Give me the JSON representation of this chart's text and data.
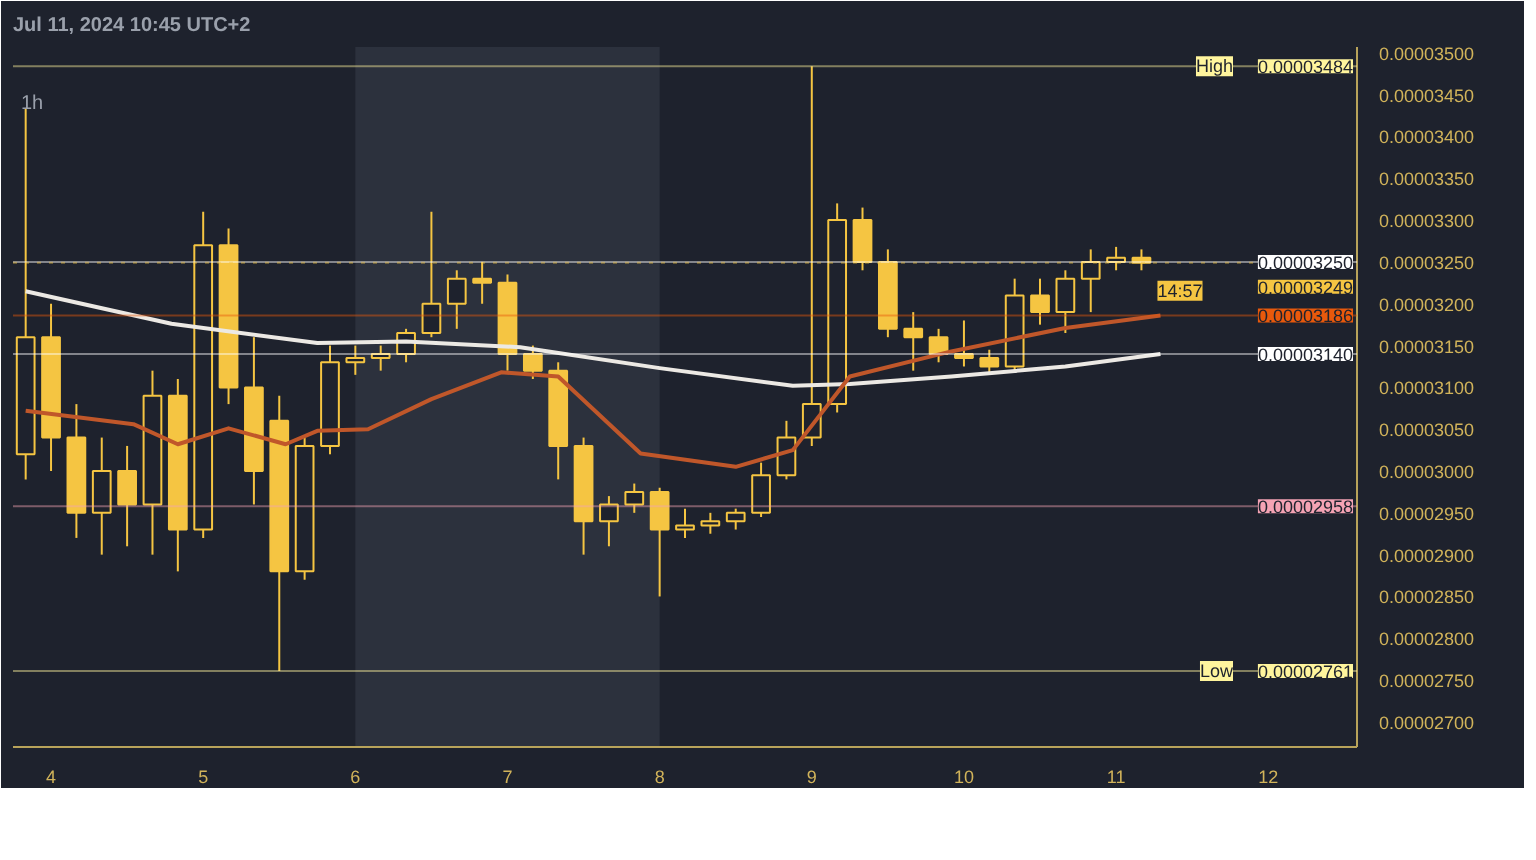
{
  "chart_data": {
    "type": "candlestick",
    "title": "Jul 11, 2024 10:45 UTC+2",
    "subtitle": "1h",
    "x": [
      "2024-07-03T20:00",
      "2024-07-04T00:00",
      "2024-07-04T04:00",
      "2024-07-04T08:00",
      "2024-07-04T12:00",
      "2024-07-04T16:00",
      "2024-07-04T20:00",
      "2024-07-05T00:00",
      "2024-07-05T04:00",
      "2024-07-05T08:00",
      "2024-07-05T12:00",
      "2024-07-05T16:00",
      "2024-07-05T20:00",
      "2024-07-06T00:00",
      "2024-07-06T04:00",
      "2024-07-06T08:00",
      "2024-07-06T12:00",
      "2024-07-06T16:00",
      "2024-07-06T20:00",
      "2024-07-07T00:00",
      "2024-07-07T04:00",
      "2024-07-07T08:00",
      "2024-07-07T12:00",
      "2024-07-07T16:00",
      "2024-07-07T20:00",
      "2024-07-08T00:00",
      "2024-07-08T04:00",
      "2024-07-08T08:00",
      "2024-07-08T12:00",
      "2024-07-08T16:00",
      "2024-07-08T20:00",
      "2024-07-09T00:00",
      "2024-07-09T04:00",
      "2024-07-09T08:00",
      "2024-07-09T12:00",
      "2024-07-09T16:00",
      "2024-07-09T20:00",
      "2024-07-10T00:00",
      "2024-07-10T04:00",
      "2024-07-10T08:00",
      "2024-07-10T12:00",
      "2024-07-10T16:00",
      "2024-07-10T20:00",
      "2024-07-11T00:00",
      "2024-07-11T04:00"
    ],
    "ohlc": [
      [
        3.02e-05,
        3.433e-05,
        2.99e-05,
        3.16e-05
      ],
      [
        3.16e-05,
        3.2e-05,
        3e-05,
        3.04e-05
      ],
      [
        3.04e-05,
        3.08e-05,
        2.92e-05,
        2.95e-05
      ],
      [
        2.95e-05,
        3.04e-05,
        2.9e-05,
        3e-05
      ],
      [
        3e-05,
        3.03e-05,
        2.91e-05,
        2.96e-05
      ],
      [
        2.96e-05,
        3.12e-05,
        2.9e-05,
        3.09e-05
      ],
      [
        3.09e-05,
        3.11e-05,
        2.88e-05,
        2.93e-05
      ],
      [
        2.93e-05,
        3.31e-05,
        2.92e-05,
        3.27e-05
      ],
      [
        3.27e-05,
        3.29e-05,
        3.08e-05,
        3.1e-05
      ],
      [
        3.1e-05,
        3.16e-05,
        2.96e-05,
        3e-05
      ],
      [
        3.06e-05,
        3.09e-05,
        2.761e-05,
        2.88e-05
      ],
      [
        2.88e-05,
        3.04e-05,
        2.87e-05,
        3.03e-05
      ],
      [
        3.03e-05,
        3.15e-05,
        3.02e-05,
        3.13e-05
      ],
      [
        3.13e-05,
        3.15e-05,
        3.115e-05,
        3.135e-05
      ],
      [
        3.135e-05,
        3.15e-05,
        3.12e-05,
        3.14e-05
      ],
      [
        3.14e-05,
        3.17e-05,
        3.13e-05,
        3.165e-05
      ],
      [
        3.165e-05,
        3.31e-05,
        3.16e-05,
        3.2e-05
      ],
      [
        3.2e-05,
        3.24e-05,
        3.17e-05,
        3.23e-05
      ],
      [
        3.23e-05,
        3.25e-05,
        3.2e-05,
        3.225e-05
      ],
      [
        3.225e-05,
        3.235e-05,
        3.12e-05,
        3.14e-05
      ],
      [
        3.14e-05,
        3.15e-05,
        3.11e-05,
        3.12e-05
      ],
      [
        3.12e-05,
        3.13e-05,
        2.99e-05,
        3.03e-05
      ],
      [
        3.03e-05,
        3.04e-05,
        2.9e-05,
        2.94e-05
      ],
      [
        2.94e-05,
        2.97e-05,
        2.91e-05,
        2.96e-05
      ],
      [
        2.96e-05,
        2.985e-05,
        2.95e-05,
        2.975e-05
      ],
      [
        2.975e-05,
        2.98e-05,
        2.85e-05,
        2.93e-05
      ],
      [
        2.93e-05,
        2.955e-05,
        2.92e-05,
        2.935e-05
      ],
      [
        2.935e-05,
        2.95e-05,
        2.925e-05,
        2.94e-05
      ],
      [
        2.94e-05,
        2.955e-05,
        2.93e-05,
        2.95e-05
      ],
      [
        2.95e-05,
        3.01e-05,
        2.945e-05,
        2.995e-05
      ],
      [
        2.995e-05,
        3.06e-05,
        2.99e-05,
        3.04e-05
      ],
      [
        3.04e-05,
        3.484e-05,
        3.03e-05,
        3.08e-05
      ],
      [
        3.08e-05,
        3.32e-05,
        3.07e-05,
        3.3e-05
      ],
      [
        3.3e-05,
        3.315e-05,
        3.24e-05,
        3.25e-05
      ],
      [
        3.25e-05,
        3.265e-05,
        3.16e-05,
        3.17e-05
      ],
      [
        3.17e-05,
        3.19e-05,
        3.12e-05,
        3.16e-05
      ],
      [
        3.16e-05,
        3.17e-05,
        3.13e-05,
        3.14e-05
      ],
      [
        3.14e-05,
        3.18e-05,
        3.125e-05,
        3.135e-05
      ],
      [
        3.135e-05,
        3.145e-05,
        3.115e-05,
        3.125e-05
      ],
      [
        3.125e-05,
        3.23e-05,
        3.12e-05,
        3.21e-05
      ],
      [
        3.21e-05,
        3.23e-05,
        3.175e-05,
        3.19e-05
      ],
      [
        3.19e-05,
        3.24e-05,
        3.165e-05,
        3.23e-05
      ],
      [
        3.23e-05,
        3.265e-05,
        3.19e-05,
        3.25e-05
      ],
      [
        3.25e-05,
        3.268e-05,
        3.24e-05,
        3.255e-05
      ],
      [
        3.255e-05,
        3.265e-05,
        3.24e-05,
        3.249e-05
      ]
    ],
    "color": "#f5c542",
    "series": [
      {
        "type": "line",
        "color": "#ece9e4",
        "x": [
          "2024-07-03T20:00",
          "2024-07-04T19:00",
          "2024-07-05T18:00",
          "2024-07-06T08:00",
          "2024-07-07T02:00",
          "2024-07-08T00:00",
          "2024-07-08T21:00",
          "2024-07-09T06:00",
          "2024-07-09T22:00",
          "2024-07-10T16:00",
          "2024-07-11T07:00"
        ],
        "values": [
          3.215e-05,
          3.176e-05,
          3.153e-05,
          3.155e-05,
          3.148e-05,
          3.123e-05,
          3.102e-05,
          3.104e-05,
          3.113e-05,
          3.125e-05,
          3.14e-05
        ]
      },
      {
        "type": "line",
        "color": "#c0572a",
        "x": [
          "2024-07-03T20:00",
          "2024-07-04T13:00",
          "2024-07-04T20:00",
          "2024-07-05T04:00",
          "2024-07-05T13:00",
          "2024-07-05T18:00",
          "2024-07-06T02:00",
          "2024-07-06T12:00",
          "2024-07-06T23:00",
          "2024-07-07T08:00",
          "2024-07-07T21:00",
          "2024-07-08T12:00",
          "2024-07-08T21:00",
          "2024-07-09T06:00",
          "2024-07-09T22:00",
          "2024-07-10T16:00",
          "2024-07-11T07:00"
        ],
        "values": [
          3.072e-05,
          3.056e-05,
          3.032e-05,
          3.051e-05,
          3.032e-05,
          3.048e-05,
          3.05e-05,
          3.086e-05,
          3.118e-05,
          3.113e-05,
          3.021e-05,
          3.005e-05,
          3.025e-05,
          3.113e-05,
          3.143e-05,
          3.171e-05,
          3.186e-05
        ]
      }
    ],
    "ref_lines": [
      {
        "axis": "y",
        "value": 3.484e-05,
        "label": "0.00003484",
        "color": "#fff59d"
      },
      {
        "axis": "y",
        "value": 3.25e-05,
        "label": "0.00003250",
        "color": "#ffffff"
      },
      {
        "axis": "y",
        "value": 3.249e-05,
        "label": "0.00003249",
        "color": "#f5c542",
        "line_style": "dotted"
      },
      {
        "axis": "y",
        "value": 3.186e-05,
        "label": "0.00003186",
        "color": "#e8590c"
      },
      {
        "axis": "y",
        "value": 3.14e-05,
        "label": "0.00003140",
        "color": "#ffffff"
      },
      {
        "axis": "y",
        "value": 2.958e-05,
        "label": "0.00002958",
        "color": "#f4a3b4"
      },
      {
        "axis": "y",
        "value": 2.761e-05,
        "label": "0.00002761",
        "color": "#fff59d"
      }
    ],
    "bands": [
      {
        "axis": "x",
        "from": "2024-07-06T00:00",
        "to": "2024-07-08T00:00",
        "color": "#2c313d"
      }
    ],
    "annotations": [
      {
        "text": "14:57",
        "x": "2024-07-11T04:00",
        "y": 3.249e-05
      },
      {
        "text": "High",
        "y": 3.484e-05
      },
      {
        "text": "Low",
        "y": 2.761e-05
      }
    ],
    "xlim": [
      "2024-07-03T18:00",
      "2024-07-12T14:00"
    ],
    "xticks": [
      {
        "value": "2024-07-04",
        "label": "4"
      },
      {
        "value": "2024-07-05",
        "label": "5"
      },
      {
        "value": "2024-07-06",
        "label": "6"
      },
      {
        "value": "2024-07-07",
        "label": "7"
      },
      {
        "value": "2024-07-08",
        "label": "8"
      },
      {
        "value": "2024-07-09",
        "label": "9"
      },
      {
        "value": "2024-07-10",
        "label": "10"
      },
      {
        "value": "2024-07-11",
        "label": "11"
      },
      {
        "value": "2024-07-12",
        "label": "12"
      }
    ],
    "ylim": [
      2.67e-05,
      3.507e-05
    ],
    "yticks": [
      {
        "value": 2.7e-05,
        "label": "0.00002700"
      },
      {
        "value": 2.75e-05,
        "label": "0.00002750"
      },
      {
        "value": 2.8e-05,
        "label": "0.00002800"
      },
      {
        "value": 2.85e-05,
        "label": "0.00002850"
      },
      {
        "value": 2.9e-05,
        "label": "0.00002900"
      },
      {
        "value": 2.95e-05,
        "label": "0.00002950"
      },
      {
        "value": 3e-05,
        "label": "0.00003000"
      },
      {
        "value": 3.05e-05,
        "label": "0.00003050"
      },
      {
        "value": 3.1e-05,
        "label": "0.00003100"
      },
      {
        "value": 3.15e-05,
        "label": "0.00003150"
      },
      {
        "value": 3.2e-05,
        "label": "0.00003200"
      },
      {
        "value": 3.25e-05,
        "label": "0.00003250"
      },
      {
        "value": 3.3e-05,
        "label": "0.00003300"
      },
      {
        "value": 3.35e-05,
        "label": "0.00003350"
      },
      {
        "value": 3.4e-05,
        "label": "0.00003400"
      },
      {
        "value": 3.45e-05,
        "label": "0.00003450"
      },
      {
        "value": 3.5e-05,
        "label": "0.00003500"
      }
    ]
  }
}
